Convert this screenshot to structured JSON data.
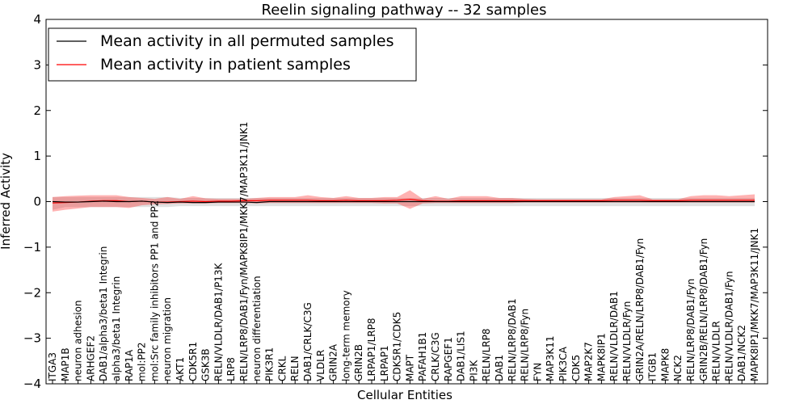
{
  "chart_data": {
    "type": "line",
    "title": "Reelin signaling pathway -- 32 samples",
    "xlabel": "Cellular Entities",
    "ylabel": "Inferred Activity",
    "ylim": [
      -4,
      4
    ],
    "yticks": [
      -4,
      -3,
      -2,
      -1,
      0,
      1,
      2,
      3,
      4
    ],
    "ytick_labels": [
      "−4",
      "−3",
      "−2",
      "−1",
      "0",
      "1",
      "2",
      "3",
      "4"
    ],
    "grid": false,
    "legend_position": "top-left",
    "categories": [
      "ITGA3",
      "MAP1B",
      "neuron adhesion",
      "ARHGEF2",
      "DAB1/alpha3/beta1 Integrin",
      "alpha3/beta1 Integrin",
      "RAP1A",
      "mol:PP2",
      "mol:Src family inhibitors PP1 and PP2",
      "neuron migration",
      "AKT1",
      "CDK5R1",
      "GSK3B",
      "RELN/VLDLR/DAB1/P13K",
      "LRP8",
      "RELN/LRP8/DAB1/Fyn/MAPK8IP1/MKK7/MAP3K11/JNK1",
      "neuron differentiation",
      "PIK3R1",
      "CRKL",
      "RELN",
      "DAB1/CRLK/C3G",
      "VLDLR",
      "GRIN2A",
      "long-term memory",
      "GRIN2B",
      "LRPAP1/LRP8",
      "LRPAP1",
      "CDK5R1/CDK5",
      "MAPT",
      "PAFAH1B1",
      "CRLK/C3G",
      "RAPGEF1",
      "DAB1/LIS1",
      "PI3K",
      "RELN/LRP8",
      "DAB1",
      "RELN/LRP8/DAB1",
      "RELN/LRP8/Fyn",
      "FYN",
      "MAP3K11",
      "PIK3CA",
      "CDK5",
      "MAP2K7",
      "MAPK8IP1",
      "RELN/VLDLR/DAB1",
      "RELN/VLDLR/Fyn",
      "GRIN2A/RELN/LRP8/DAB1/Fyn",
      "ITGB1",
      "MAPK8",
      "NCK2",
      "RELN/LRP8/DAB1/Fyn",
      "GRIN2B/RELN/LRP8/DAB1/Fyn",
      "RELN/VLDLR",
      "RELN/VLDLR/DAB1/Fyn",
      "DAB1/NCK2",
      "MAPK8IP1/MKK7/MAP3K11/JNK1"
    ],
    "series": [
      {
        "name": "Mean activity in all permuted samples",
        "color": "#000000",
        "values": [
          0.0,
          -0.01,
          -0.01,
          0.0,
          0.01,
          0.0,
          0.0,
          0.01,
          -0.01,
          -0.02,
          -0.01,
          -0.02,
          -0.02,
          -0.01,
          -0.01,
          -0.01,
          -0.02,
          0.0,
          0.0,
          0.0,
          0.0,
          0.0,
          0.0,
          0.0,
          0.0,
          0.0,
          0.0,
          0.0,
          0.0,
          0.0,
          0.0,
          0.0,
          0.0,
          0.0,
          0.0,
          0.0,
          0.0,
          0.0,
          0.0,
          0.0,
          0.0,
          0.0,
          0.0,
          0.0,
          0.0,
          0.0,
          0.0,
          0.0,
          0.0,
          0.0,
          0.0,
          0.0,
          0.0,
          0.0,
          0.0,
          0.0
        ],
        "lower": [
          -0.18,
          -0.12,
          -0.12,
          -0.12,
          -0.12,
          -0.12,
          -0.12,
          -0.12,
          -0.12,
          -0.12,
          -0.1,
          -0.1,
          -0.1,
          -0.1,
          -0.1,
          -0.1,
          -0.1,
          -0.1,
          -0.1,
          -0.1,
          -0.1,
          -0.1,
          -0.1,
          -0.1,
          -0.1,
          -0.1,
          -0.1,
          -0.1,
          -0.1,
          -0.1,
          -0.1,
          -0.1,
          -0.1,
          -0.1,
          -0.1,
          -0.1,
          -0.1,
          -0.1,
          -0.1,
          -0.1,
          -0.1,
          -0.1,
          -0.1,
          -0.1,
          -0.1,
          -0.1,
          -0.1,
          -0.1,
          -0.1,
          -0.1,
          -0.1,
          -0.1,
          -0.1,
          -0.1,
          -0.1,
          -0.1
        ],
        "upper": [
          0.1,
          0.1,
          0.1,
          0.1,
          0.1,
          0.1,
          0.1,
          0.1,
          0.1,
          0.1,
          0.08,
          0.08,
          0.08,
          0.08,
          0.08,
          0.08,
          0.08,
          0.08,
          0.08,
          0.08,
          0.08,
          0.08,
          0.08,
          0.08,
          0.08,
          0.08,
          0.08,
          0.08,
          0.08,
          0.08,
          0.08,
          0.08,
          0.08,
          0.08,
          0.08,
          0.08,
          0.08,
          0.08,
          0.08,
          0.08,
          0.08,
          0.08,
          0.08,
          0.08,
          0.08,
          0.08,
          0.08,
          0.08,
          0.08,
          0.08,
          0.08,
          0.08,
          0.08,
          0.08,
          0.08,
          0.08
        ]
      },
      {
        "name": "Mean activity in patient samples",
        "color": "#ff0000",
        "values": [
          -0.03,
          -0.02,
          -0.01,
          0.01,
          0.02,
          0.02,
          0.0,
          0.01,
          -0.01,
          -0.01,
          0.0,
          0.01,
          0.0,
          0.01,
          0.01,
          0.02,
          0.02,
          0.03,
          0.03,
          0.03,
          0.03,
          0.02,
          0.02,
          0.03,
          0.02,
          0.02,
          0.02,
          0.03,
          0.05,
          0.02,
          0.01,
          0.01,
          0.02,
          0.02,
          0.02,
          0.02,
          0.02,
          0.02,
          0.02,
          0.02,
          0.02,
          0.02,
          0.02,
          0.02,
          0.03,
          0.03,
          0.03,
          0.02,
          0.02,
          0.02,
          0.03,
          0.03,
          0.03,
          0.03,
          0.03,
          0.03
        ],
        "lower": [
          -0.22,
          -0.18,
          -0.15,
          -0.12,
          -0.12,
          -0.12,
          -0.14,
          -0.08,
          -0.06,
          -0.05,
          -0.04,
          -0.04,
          -0.04,
          -0.03,
          -0.03,
          -0.03,
          -0.04,
          -0.03,
          -0.03,
          -0.03,
          -0.03,
          -0.03,
          -0.03,
          -0.03,
          -0.03,
          -0.03,
          -0.04,
          -0.04,
          -0.16,
          -0.04,
          -0.03,
          -0.03,
          -0.03,
          -0.03,
          -0.03,
          -0.03,
          -0.03,
          -0.02,
          -0.02,
          -0.02,
          -0.02,
          -0.02,
          -0.02,
          -0.02,
          -0.02,
          -0.02,
          -0.02,
          -0.02,
          -0.02,
          -0.02,
          -0.02,
          -0.02,
          -0.02,
          -0.02,
          -0.02,
          -0.02
        ],
        "upper": [
          0.1,
          0.12,
          0.13,
          0.14,
          0.14,
          0.14,
          0.1,
          0.08,
          0.06,
          0.1,
          0.06,
          0.12,
          0.07,
          0.06,
          0.06,
          0.06,
          0.08,
          0.1,
          0.1,
          0.1,
          0.14,
          0.1,
          0.08,
          0.12,
          0.08,
          0.08,
          0.1,
          0.1,
          0.25,
          0.06,
          0.12,
          0.06,
          0.12,
          0.12,
          0.12,
          0.08,
          0.08,
          0.06,
          0.05,
          0.05,
          0.05,
          0.05,
          0.05,
          0.05,
          0.1,
          0.12,
          0.14,
          0.05,
          0.05,
          0.05,
          0.12,
          0.14,
          0.14,
          0.12,
          0.14,
          0.16
        ]
      }
    ]
  }
}
